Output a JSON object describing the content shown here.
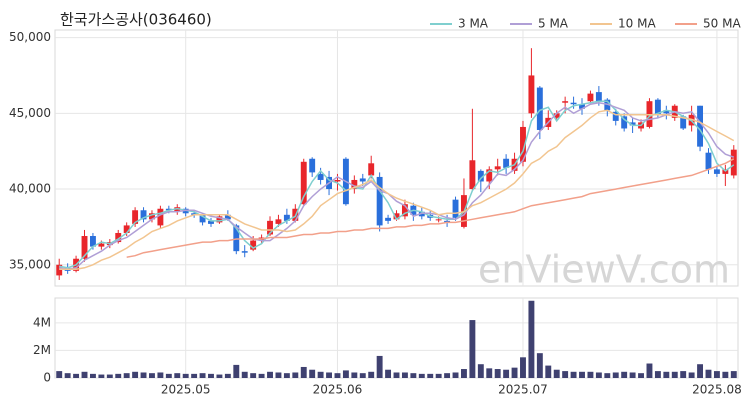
{
  "chart_data": {
    "type": "candlestick",
    "title": "한국가스공사(036460)",
    "watermark": "enViewV.com",
    "categories": [
      null,
      null,
      null,
      null,
      null,
      null,
      null,
      null,
      null,
      null,
      null,
      null,
      null,
      null,
      null,
      "2025.05",
      null,
      null,
      null,
      null,
      null,
      null,
      null,
      null,
      null,
      null,
      null,
      null,
      null,
      null,
      null,
      null,
      null,
      "2025.06",
      null,
      null,
      null,
      null,
      null,
      null,
      null,
      null,
      null,
      null,
      null,
      null,
      null,
      null,
      null,
      null,
      null,
      null,
      null,
      null,
      null,
      "2025.07",
      null,
      null,
      null,
      null,
      null,
      null,
      null,
      null,
      null,
      null,
      null,
      null,
      null,
      null,
      null,
      null,
      null,
      null,
      null,
      null,
      null,
      null,
      "2025.08",
      null,
      null
    ],
    "ohlc": {
      "up_color": "#e8262b",
      "down_color": "#2a6fdb",
      "open": [
        34300,
        34800,
        34600,
        35400,
        36900,
        36200,
        36300,
        36500,
        37100,
        37700,
        38600,
        38000,
        37600,
        38700,
        38500,
        38700,
        38400,
        38300,
        37900,
        37800,
        38300,
        37600,
        35900,
        36000,
        36600,
        37000,
        37700,
        38300,
        37900,
        39000,
        42000,
        41000,
        40800,
        40500,
        42000,
        40000,
        40700,
        40900,
        40800,
        38100,
        38000,
        38200,
        38900,
        38500,
        38300,
        38000,
        37900,
        39300,
        37500,
        40000,
        41200,
        40500,
        41300,
        42000,
        41200,
        41800,
        45000,
        46700,
        44100,
        44700,
        45700,
        45700,
        45600,
        45800,
        46400,
        45900,
        45100,
        44800,
        44400,
        44000,
        44100,
        45900,
        45200,
        44700,
        44800,
        44200,
        45500,
        42400,
        41300,
        41000,
        40900
      ],
      "high": [
        35400,
        35100,
        35600,
        37300,
        37100,
        36600,
        36700,
        37300,
        37800,
        38800,
        38800,
        38600,
        38900,
        38900,
        39000,
        38800,
        38600,
        38400,
        38100,
        38300,
        38600,
        37700,
        36300,
        36900,
        37000,
        38200,
        38300,
        38700,
        39000,
        42000,
        42100,
        41400,
        41200,
        41000,
        42100,
        40900,
        41000,
        42200,
        41100,
        38300,
        38600,
        39300,
        39100,
        38800,
        38600,
        38200,
        38300,
        39500,
        40700,
        45300,
        41300,
        41500,
        42000,
        42300,
        42400,
        44500,
        49300,
        46800,
        45200,
        45200,
        46100,
        46100,
        46000,
        46500,
        46800,
        46000,
        45300,
        45000,
        44700,
        44600,
        46000,
        46000,
        45500,
        45600,
        44900,
        45500,
        45500,
        42700,
        41500,
        41600,
        42900
      ],
      "low": [
        34000,
        34400,
        34500,
        35200,
        36000,
        36000,
        36100,
        36400,
        36900,
        37500,
        37800,
        37800,
        37400,
        38400,
        38300,
        38200,
        38100,
        37600,
        37500,
        37700,
        37900,
        35700,
        35500,
        35900,
        36400,
        36900,
        37500,
        37700,
        37800,
        38900,
        40800,
        40300,
        39600,
        39900,
        38900,
        39700,
        40200,
        40700,
        37200,
        37700,
        37900,
        38000,
        37900,
        38000,
        37900,
        37800,
        37500,
        37900,
        37400,
        39900,
        39800,
        40000,
        40900,
        41000,
        41000,
        41500,
        44700,
        43300,
        43900,
        44600,
        45000,
        45300,
        44900,
        45700,
        45500,
        44800,
        44200,
        43800,
        43700,
        43800,
        44000,
        44700,
        44600,
        44500,
        43900,
        43800,
        42500,
        41000,
        40800,
        40200,
        40700
      ],
      "close": [
        35000,
        34600,
        35400,
        36900,
        36200,
        36400,
        36500,
        37100,
        37600,
        38600,
        38000,
        38400,
        38700,
        38600,
        38800,
        38400,
        38300,
        37800,
        37700,
        38200,
        38000,
        35900,
        35800,
        36600,
        36800,
        37900,
        38000,
        37900,
        38700,
        41800,
        41100,
        40600,
        40000,
        40600,
        39000,
        40600,
        40500,
        41700,
        37600,
        37900,
        38400,
        39000,
        38300,
        38200,
        38100,
        38000,
        37800,
        38100,
        39600,
        41900,
        40500,
        41300,
        41500,
        41400,
        42000,
        44100,
        47500,
        43900,
        44700,
        45000,
        45800,
        45600,
        45300,
        46300,
        45800,
        45200,
        44500,
        44000,
        44200,
        44400,
        45800,
        44900,
        45000,
        45500,
        44000,
        44900,
        42800,
        41300,
        41000,
        41300,
        42600
      ]
    },
    "series": [
      {
        "name": "3 MA",
        "color": "#7fcfcf",
        "values": [
          34900,
          34800,
          35000,
          35600,
          36200,
          36500,
          36400,
          36700,
          37100,
          37800,
          38100,
          38300,
          38400,
          38600,
          38700,
          38600,
          38500,
          38200,
          37900,
          37900,
          38000,
          37400,
          36600,
          36100,
          36400,
          37100,
          37600,
          37900,
          38200,
          39500,
          40500,
          41200,
          40600,
          40400,
          39900,
          40100,
          40000,
          40900,
          39900,
          39100,
          38000,
          38400,
          38600,
          38500,
          38200,
          38100,
          38000,
          38000,
          38500,
          39900,
          40700,
          41200,
          41100,
          41400,
          41600,
          42500,
          44500,
          45200,
          45400,
          44500,
          45200,
          45500,
          45600,
          45700,
          45800,
          45800,
          45200,
          44600,
          44200,
          44200,
          44800,
          45000,
          45200,
          45100,
          44800,
          44500,
          43900,
          43000,
          41700,
          41200,
          41600
        ]
      },
      {
        "name": "5 MA",
        "color": "#b09fd6",
        "values": [
          34800,
          34700,
          34800,
          35300,
          35600,
          35900,
          36300,
          36600,
          36800,
          37200,
          37600,
          38000,
          38300,
          38500,
          38500,
          38600,
          38600,
          38400,
          38200,
          38100,
          38000,
          37500,
          37100,
          36700,
          36600,
          36600,
          37000,
          37400,
          37900,
          38900,
          39500,
          40000,
          40400,
          40800,
          40500,
          40200,
          40100,
          40500,
          39900,
          39700,
          39200,
          38900,
          38200,
          38400,
          38400,
          38300,
          38100,
          38000,
          38300,
          39100,
          39600,
          40300,
          41000,
          40900,
          41300,
          41900,
          43100,
          43800,
          44400,
          45000,
          45400,
          45000,
          45300,
          45600,
          45700,
          45600,
          45400,
          45200,
          44700,
          44500,
          44600,
          44700,
          44900,
          45100,
          45000,
          45100,
          44400,
          43700,
          42800,
          42300,
          42100
        ]
      },
      {
        "name": "10 MA",
        "color": "#f2c590",
        "values": [
          34700,
          34700,
          34700,
          34800,
          35000,
          35300,
          35500,
          35800,
          36100,
          36500,
          36800,
          37200,
          37400,
          37600,
          37900,
          38100,
          38300,
          38300,
          38300,
          38300,
          38300,
          38000,
          37700,
          37500,
          37300,
          37300,
          37300,
          37200,
          37300,
          37700,
          38200,
          38900,
          39300,
          39700,
          39900,
          40100,
          40300,
          40600,
          40100,
          39700,
          39400,
          39200,
          39000,
          38800,
          38600,
          38300,
          38400,
          38400,
          38500,
          38900,
          39100,
          39400,
          39700,
          40000,
          40400,
          41000,
          41700,
          42000,
          42500,
          42800,
          43400,
          43800,
          44200,
          44700,
          45100,
          45200,
          44900,
          44900,
          44900,
          44900,
          44900,
          44900,
          44900,
          44800,
          44700,
          44600,
          44400,
          44100,
          43800,
          43500,
          43200
        ]
      },
      {
        "name": "50 MA",
        "color": "#f2a08a",
        "values": [
          null,
          null,
          null,
          null,
          null,
          null,
          null,
          null,
          35500,
          35600,
          35800,
          35900,
          36000,
          36100,
          36200,
          36300,
          36400,
          36500,
          36500,
          36600,
          36600,
          36700,
          36700,
          36700,
          36700,
          36800,
          36800,
          36800,
          36900,
          37000,
          37000,
          37100,
          37100,
          37200,
          37200,
          37300,
          37300,
          37400,
          37400,
          37400,
          37500,
          37500,
          37600,
          37600,
          37700,
          37700,
          37800,
          37800,
          37900,
          38000,
          38100,
          38200,
          38300,
          38400,
          38500,
          38700,
          38900,
          39000,
          39100,
          39200,
          39300,
          39400,
          39500,
          39700,
          39800,
          39900,
          40000,
          40100,
          40200,
          40300,
          40400,
          40500,
          40600,
          40700,
          40800,
          40900,
          41100,
          41300,
          41500,
          41700,
          42000
        ]
      }
    ],
    "ylim": [
      33600,
      50500
    ],
    "yticks": [
      {
        "value": 35000,
        "label": "35,000"
      },
      {
        "value": 40000,
        "label": "40,000"
      },
      {
        "value": 45000,
        "label": "45,000"
      },
      {
        "value": 50000,
        "label": "50,000"
      }
    ],
    "grid": true,
    "volume": {
      "color": "#3f4170",
      "ylim": [
        0,
        5800000
      ],
      "yticks": [
        0,
        {
          "value": 2000000,
          "label": "2M"
        },
        {
          "value": 4000000,
          "label": "4M"
        }
      ],
      "values": [
        500000,
        350000,
        300000,
        450000,
        300000,
        250000,
        250000,
        300000,
        350000,
        450000,
        400000,
        350000,
        400000,
        300000,
        350000,
        300000,
        300000,
        350000,
        300000,
        250000,
        300000,
        950000,
        450000,
        350000,
        300000,
        450000,
        400000,
        350000,
        400000,
        800000,
        600000,
        450000,
        400000,
        350000,
        550000,
        400000,
        350000,
        450000,
        1600000,
        600000,
        400000,
        400000,
        350000,
        300000,
        300000,
        300000,
        350000,
        400000,
        650000,
        4200000,
        1000000,
        700000,
        650000,
        600000,
        750000,
        1500000,
        5600000,
        1800000,
        900000,
        600000,
        500000,
        450000,
        450000,
        450000,
        400000,
        350000,
        400000,
        450000,
        400000,
        350000,
        1050000,
        500000,
        450000,
        450000,
        500000,
        400000,
        1000000,
        600000,
        500000,
        450000,
        500000
      ]
    }
  }
}
